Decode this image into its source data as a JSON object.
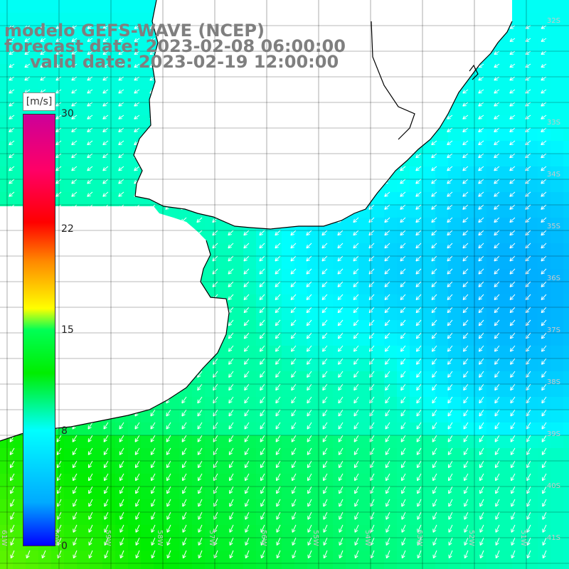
{
  "title": {
    "line1": "modelo GEFS-WAVE (NCEP)",
    "line2": "forecast date: 2023-02-08 06:00:00",
    "line3": "valid date: 2023-02-19 12:00:00"
  },
  "legend": {
    "unit": "[m/s]",
    "ticks": [
      "30",
      "22",
      "15",
      "8",
      "0"
    ],
    "tick_values": [
      30,
      22,
      15,
      8,
      0
    ],
    "range": [
      0,
      30
    ],
    "colormap": [
      "#0000ff",
      "#00aaff",
      "#00ffff",
      "#00ee00",
      "#ffff00",
      "#ff8800",
      "#ff0000",
      "#cc0099"
    ]
  },
  "map": {
    "lat_labels": [
      "32S",
      "33S",
      "34S",
      "35S",
      "36S",
      "37S",
      "38S",
      "39S",
      "40S",
      "41S"
    ],
    "lon_labels": [
      "61W",
      "60W",
      "59W",
      "58W",
      "57W",
      "56W",
      "55W",
      "54W",
      "53W",
      "52W",
      "51W"
    ],
    "land_color": "#ffffff",
    "grid_color": "#000000",
    "arrow_color": "#ffffff",
    "field": "wind speed with direction arrows (predominantly from the north-east)"
  }
}
